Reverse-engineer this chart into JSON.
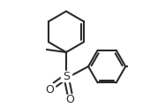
{
  "bg_color": "#ffffff",
  "line_color": "#2a2a2a",
  "line_width": 1.5,
  "figsize": [
    1.7,
    1.22
  ],
  "dpi": 100,
  "xlim": [
    -2.5,
    3.5
  ],
  "ylim": [
    -3.2,
    2.8
  ]
}
